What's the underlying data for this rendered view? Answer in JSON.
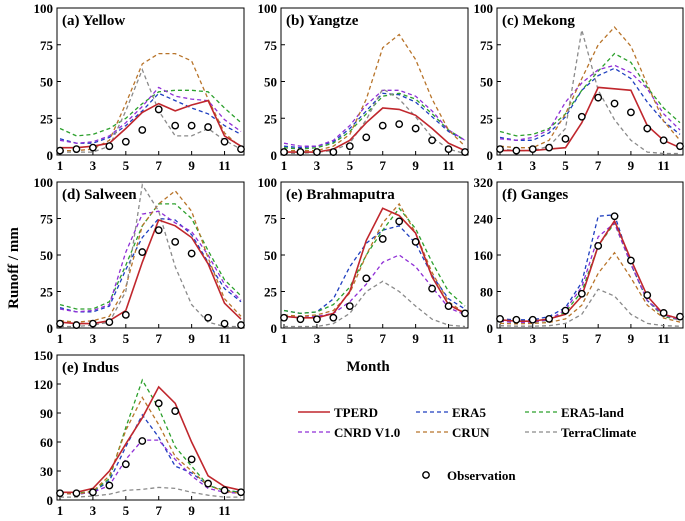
{
  "figure": {
    "ylabel": "Runoff / mm",
    "xlabel": "Month"
  },
  "legend": {
    "items": [
      {
        "name": "TPERD",
        "color": "#c0272d",
        "dash": "solid"
      },
      {
        "name": "ERA5",
        "color": "#1f3fbf",
        "dash": "dash"
      },
      {
        "name": "ERA5-land",
        "color": "#2ca02c",
        "dash": "dash"
      },
      {
        "name": "CNRD V1.0",
        "color": "#8f2fd6",
        "dash": "dash"
      },
      {
        "name": "CRUN",
        "color": "#b8742a",
        "dash": "dash"
      },
      {
        "name": "TerraClimate",
        "color": "#8a8a8a",
        "dash": "dash"
      },
      {
        "name": "Observation",
        "color": "#000000",
        "dash": "marker"
      }
    ]
  },
  "chart_data": [
    {
      "type": "line",
      "title": "(a) Yellow",
      "xticks": [
        "1",
        "3",
        "5",
        "7",
        "9",
        "11"
      ],
      "yticks": [
        "0",
        "25",
        "50",
        "75",
        "100"
      ],
      "ylim": [
        0,
        100
      ],
      "x": [
        1,
        2,
        3,
        4,
        5,
        6,
        7,
        8,
        9,
        10,
        11,
        12
      ],
      "series": [
        {
          "name": "TPERD",
          "values": [
            5,
            5,
            6,
            8,
            18,
            29,
            35,
            30,
            34,
            37,
            13,
            6
          ]
        },
        {
          "name": "ERA5",
          "values": [
            11,
            8,
            8,
            12,
            20,
            30,
            42,
            37,
            32,
            28,
            20,
            14
          ]
        },
        {
          "name": "ERA5-land",
          "values": [
            18,
            13,
            14,
            18,
            25,
            35,
            43,
            44,
            44,
            43,
            32,
            22
          ]
        },
        {
          "name": "CNRD V1.0",
          "values": [
            10,
            8,
            9,
            13,
            22,
            33,
            46,
            40,
            38,
            37,
            24,
            16
          ]
        },
        {
          "name": "CRUN",
          "values": [
            3,
            3,
            4,
            10,
            35,
            62,
            69,
            69,
            64,
            38,
            15,
            5
          ]
        },
        {
          "name": "TerraClimate",
          "values": [
            2,
            2,
            2,
            6,
            30,
            58,
            30,
            13,
            13,
            18,
            10,
            4
          ]
        },
        {
          "name": "Observation",
          "values": [
            3,
            4,
            5,
            6,
            9,
            17,
            31,
            20,
            20,
            19,
            9,
            4
          ]
        }
      ]
    },
    {
      "type": "line",
      "title": "(b) Yangtze",
      "xticks": [
        "1",
        "3",
        "5",
        "7",
        "9",
        "11"
      ],
      "yticks": [
        "0",
        "25",
        "50",
        "75",
        "100"
      ],
      "ylim": [
        0,
        100
      ],
      "x": [
        1,
        2,
        3,
        4,
        5,
        6,
        7,
        8,
        9,
        10,
        11,
        12
      ],
      "series": [
        {
          "name": "TPERD",
          "values": [
            2,
            2,
            2,
            4,
            10,
            22,
            32,
            31,
            27,
            18,
            8,
            3
          ]
        },
        {
          "name": "ERA5",
          "values": [
            6,
            5,
            6,
            9,
            18,
            30,
            42,
            41,
            36,
            26,
            16,
            10
          ]
        },
        {
          "name": "ERA5-land",
          "values": [
            5,
            4,
            5,
            8,
            16,
            28,
            40,
            42,
            38,
            28,
            17,
            10
          ]
        },
        {
          "name": "CNRD V1.0",
          "values": [
            8,
            6,
            6,
            10,
            20,
            34,
            44,
            44,
            40,
            30,
            17,
            10
          ]
        },
        {
          "name": "CRUN",
          "values": [
            3,
            3,
            3,
            6,
            14,
            38,
            73,
            82,
            65,
            38,
            17,
            6
          ]
        },
        {
          "name": "TerraClimate",
          "values": [
            1,
            1,
            2,
            3,
            8,
            24,
            45,
            38,
            26,
            12,
            4,
            1
          ]
        },
        {
          "name": "Observation",
          "values": [
            2,
            2,
            2,
            2,
            6,
            12,
            20,
            21,
            18,
            10,
            4,
            2
          ]
        }
      ]
    },
    {
      "type": "line",
      "title": "(c) Mekong",
      "xticks": [
        "1",
        "3",
        "5",
        "7",
        "9",
        "11"
      ],
      "yticks": [
        "0",
        "25",
        "50",
        "75",
        "100"
      ],
      "ylim": [
        0,
        100
      ],
      "x": [
        1,
        2,
        3,
        4,
        5,
        6,
        7,
        8,
        9,
        10,
        11,
        12
      ],
      "series": [
        {
          "name": "TPERD",
          "values": [
            3,
            3,
            3,
            4,
            5,
            22,
            46,
            45,
            44,
            20,
            10,
            5
          ]
        },
        {
          "name": "ERA5",
          "values": [
            12,
            10,
            10,
            15,
            26,
            44,
            54,
            59,
            52,
            36,
            23,
            14
          ]
        },
        {
          "name": "ERA5-land",
          "values": [
            16,
            13,
            14,
            18,
            28,
            44,
            57,
            69,
            63,
            46,
            32,
            22
          ]
        },
        {
          "name": "CNRD V1.0",
          "values": [
            11,
            10,
            12,
            17,
            36,
            49,
            58,
            61,
            56,
            45,
            28,
            17
          ]
        },
        {
          "name": "CRUN",
          "values": [
            6,
            5,
            5,
            10,
            28,
            52,
            75,
            87,
            74,
            48,
            23,
            10
          ]
        },
        {
          "name": "TerraClimate",
          "values": [
            4,
            3,
            3,
            6,
            18,
            85,
            44,
            24,
            10,
            2,
            1,
            1
          ]
        },
        {
          "name": "Observation",
          "values": [
            4,
            3,
            4,
            5,
            11,
            26,
            39,
            35,
            29,
            18,
            10,
            6
          ]
        }
      ]
    },
    {
      "type": "line",
      "title": "(d) Salween",
      "xticks": [
        "1",
        "3",
        "5",
        "7",
        "9",
        "11"
      ],
      "yticks": [
        "0",
        "25",
        "50",
        "75",
        "100"
      ],
      "ylim": [
        0,
        100
      ],
      "x": [
        1,
        2,
        3,
        4,
        5,
        6,
        7,
        8,
        9,
        10,
        11,
        12
      ],
      "series": [
        {
          "name": "TPERD",
          "values": [
            4,
            3,
            3,
            5,
            12,
            45,
            74,
            70,
            62,
            44,
            17,
            6
          ]
        },
        {
          "name": "ERA5",
          "values": [
            14,
            11,
            11,
            15,
            40,
            62,
            75,
            74,
            64,
            45,
            27,
            18
          ]
        },
        {
          "name": "ERA5-land",
          "values": [
            16,
            13,
            13,
            18,
            43,
            70,
            85,
            85,
            75,
            53,
            33,
            22
          ]
        },
        {
          "name": "CNRD V1.0",
          "values": [
            13,
            11,
            12,
            16,
            52,
            78,
            80,
            72,
            66,
            50,
            30,
            19
          ]
        },
        {
          "name": "CRUN",
          "values": [
            5,
            4,
            5,
            8,
            28,
            70,
            85,
            94,
            80,
            48,
            20,
            8
          ]
        },
        {
          "name": "TerraClimate",
          "values": [
            1,
            1,
            2,
            4,
            25,
            98,
            80,
            42,
            16,
            4,
            1,
            1
          ]
        },
        {
          "name": "Observation",
          "values": [
            3,
            2,
            3,
            4,
            9,
            52,
            67,
            59,
            51,
            7,
            3,
            2
          ]
        }
      ]
    },
    {
      "type": "line",
      "title": "(e) Brahmaputra",
      "xticks": [
        "1",
        "3",
        "5",
        "7",
        "9",
        "11"
      ],
      "yticks": [
        "0",
        "25",
        "50",
        "75",
        "100"
      ],
      "ylim": [
        0,
        100
      ],
      "x": [
        1,
        2,
        3,
        4,
        5,
        6,
        7,
        8,
        9,
        10,
        11,
        12
      ],
      "series": [
        {
          "name": "TPERD",
          "values": [
            8,
            7,
            7,
            10,
            25,
            60,
            82,
            77,
            65,
            35,
            16,
            10
          ]
        },
        {
          "name": "ERA5",
          "values": [
            12,
            10,
            11,
            20,
            42,
            58,
            67,
            70,
            58,
            36,
            20,
            13
          ]
        },
        {
          "name": "ERA5-land",
          "values": [
            12,
            10,
            11,
            16,
            28,
            50,
            67,
            82,
            68,
            45,
            25,
            15
          ]
        },
        {
          "name": "CNRD V1.0",
          "values": [
            8,
            7,
            8,
            10,
            18,
            30,
            45,
            50,
            42,
            28,
            14,
            9
          ]
        },
        {
          "name": "CRUN",
          "values": [
            9,
            8,
            9,
            12,
            24,
            50,
            72,
            85,
            65,
            38,
            18,
            10
          ]
        },
        {
          "name": "TerraClimate",
          "values": [
            1,
            1,
            1,
            3,
            10,
            25,
            32,
            25,
            15,
            6,
            2,
            1
          ]
        },
        {
          "name": "Observation",
          "values": [
            7,
            6,
            6,
            7,
            15,
            34,
            61,
            73,
            59,
            27,
            15,
            10
          ]
        }
      ]
    },
    {
      "type": "line",
      "title": "(f) Ganges",
      "xticks": [
        "1",
        "3",
        "5",
        "7",
        "9",
        "11"
      ],
      "yticks": [
        "0",
        "80",
        "160",
        "240",
        "320"
      ],
      "ylim": [
        0,
        320
      ],
      "x": [
        1,
        2,
        3,
        4,
        5,
        6,
        7,
        8,
        9,
        10,
        11,
        12
      ],
      "series": [
        {
          "name": "TPERD",
          "values": [
            18,
            15,
            15,
            20,
            30,
            70,
            180,
            235,
            150,
            70,
            30,
            20
          ]
        },
        {
          "name": "ERA5",
          "values": [
            20,
            18,
            18,
            25,
            45,
            100,
            245,
            248,
            140,
            60,
            30,
            20
          ]
        },
        {
          "name": "ERA5-land",
          "values": [
            15,
            12,
            13,
            17,
            35,
            80,
            180,
            230,
            140,
            60,
            25,
            18
          ]
        },
        {
          "name": "CNRD V1.0",
          "values": [
            15,
            12,
            13,
            18,
            40,
            90,
            200,
            230,
            140,
            60,
            28,
            18
          ]
        },
        {
          "name": "CRUN",
          "values": [
            10,
            9,
            10,
            12,
            20,
            50,
            120,
            165,
            110,
            50,
            22,
            13
          ]
        },
        {
          "name": "TerraClimate",
          "values": [
            5,
            4,
            4,
            5,
            10,
            30,
            85,
            70,
            30,
            10,
            5,
            4
          ]
        },
        {
          "name": "Observation",
          "values": [
            20,
            18,
            18,
            20,
            38,
            75,
            180,
            245,
            148,
            72,
            33,
            25
          ]
        }
      ]
    },
    {
      "type": "line",
      "title": "(e) Indus",
      "xticks": [
        "1",
        "3",
        "5",
        "7",
        "9",
        "11"
      ],
      "yticks": [
        "0",
        "30",
        "60",
        "90",
        "120",
        "150"
      ],
      "ylim": [
        0,
        150
      ],
      "x": [
        1,
        2,
        3,
        4,
        5,
        6,
        7,
        8,
        9,
        10,
        11,
        12
      ],
      "series": [
        {
          "name": "TPERD",
          "values": [
            8,
            8,
            12,
            30,
            58,
            85,
            117,
            100,
            60,
            25,
            14,
            10
          ]
        },
        {
          "name": "ERA5",
          "values": [
            7,
            6,
            8,
            20,
            55,
            88,
            65,
            35,
            28,
            15,
            10,
            8
          ]
        },
        {
          "name": "ERA5-land",
          "values": [
            8,
            7,
            9,
            22,
            75,
            124,
            95,
            55,
            35,
            15,
            10,
            8
          ]
        },
        {
          "name": "CNRD V1.0",
          "values": [
            7,
            6,
            8,
            15,
            42,
            62,
            62,
            42,
            25,
            12,
            8,
            7
          ]
        },
        {
          "name": "CRUN",
          "values": [
            7,
            6,
            9,
            25,
            72,
            106,
            78,
            45,
            30,
            15,
            9,
            7
          ]
        },
        {
          "name": "TerraClimate",
          "values": [
            3,
            3,
            4,
            6,
            10,
            11,
            13,
            12,
            8,
            5,
            3,
            3
          ]
        },
        {
          "name": "Observation",
          "values": [
            7,
            7,
            8,
            15,
            37,
            61,
            100,
            92,
            42,
            17,
            10,
            8
          ]
        }
      ]
    }
  ]
}
